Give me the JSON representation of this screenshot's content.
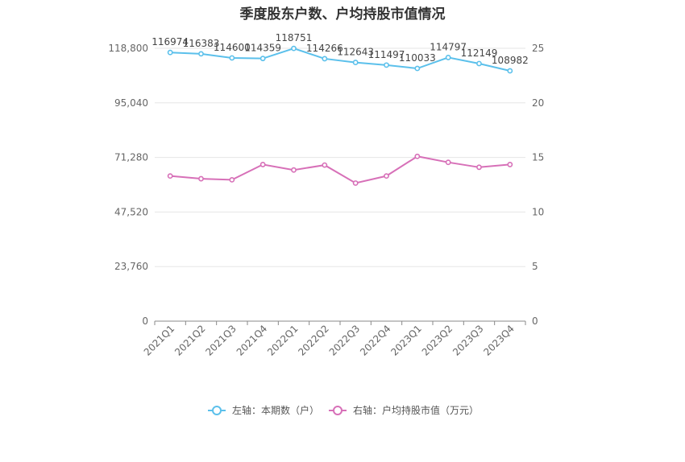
{
  "chart_data": {
    "type": "line",
    "title": "季度股东户数、户均持股市值情况",
    "categories": [
      "2021Q1",
      "2021Q2",
      "2021Q3",
      "2021Q4",
      "2022Q1",
      "2022Q2",
      "2022Q3",
      "2022Q4",
      "2023Q1",
      "2023Q2",
      "2023Q3",
      "2023Q4"
    ],
    "left_axis": {
      "min": 0,
      "max": 118800,
      "ticks": [
        "0",
        "23,760",
        "47,520",
        "71,280",
        "95,040",
        "118,800"
      ]
    },
    "right_axis": {
      "min": 0,
      "max": 25,
      "ticks": [
        "0",
        "5",
        "10",
        "15",
        "20",
        "25"
      ]
    },
    "grid": true,
    "legend_position": "bottom",
    "series": [
      {
        "name": "左轴：本期数（户）",
        "axis": "left",
        "color": "#5bc0eb",
        "values": [
          116974,
          116383,
          114600,
          114359,
          118751,
          114266,
          112643,
          111497,
          110033,
          114797,
          112149,
          108982
        ],
        "labels": [
          "116974",
          "116383",
          "114600",
          "114359",
          "118751",
          "114266",
          "112643",
          "111497",
          "110033",
          "114797",
          "112149",
          "108982"
        ]
      },
      {
        "name": "右轴：户均持股市值（万元）",
        "axis": "right",
        "color": "#d770b8",
        "values": [
          13.3,
          13.05,
          12.95,
          14.35,
          13.85,
          14.3,
          12.65,
          13.3,
          15.1,
          14.55,
          14.1,
          14.35
        ]
      }
    ]
  }
}
